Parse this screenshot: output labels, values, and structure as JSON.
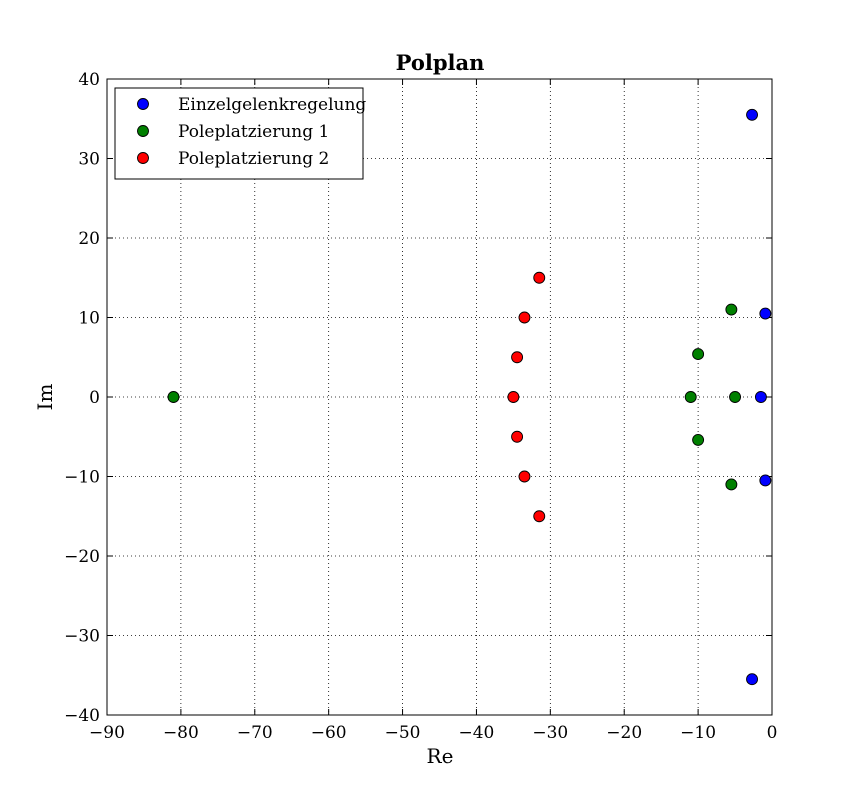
{
  "chart_data": {
    "type": "scatter",
    "title": "Polplan",
    "xlabel": "Re",
    "ylabel": "Im",
    "xlim": [
      -90,
      0
    ],
    "ylim": [
      -40,
      40
    ],
    "xticks": [
      -90,
      -80,
      -70,
      -60,
      -50,
      -40,
      -30,
      -20,
      -10,
      0
    ],
    "yticks": [
      -40,
      -30,
      -20,
      -10,
      0,
      10,
      20,
      30,
      40
    ],
    "xtick_labels": [
      "−90",
      "−80",
      "−70",
      "−60",
      "−50",
      "−40",
      "−30",
      "−20",
      "−10",
      "0"
    ],
    "ytick_labels": [
      "−40",
      "−30",
      "−20",
      "−10",
      "0",
      "10",
      "20",
      "30",
      "40"
    ],
    "grid": true,
    "legend_position": "top-left",
    "series": [
      {
        "name": "Einzelgelenkregelung",
        "color": "#0000ff",
        "points": [
          {
            "x": -2.7,
            "y": 35.5
          },
          {
            "x": -2.7,
            "y": -35.5
          },
          {
            "x": -0.9,
            "y": 10.5
          },
          {
            "x": -0.9,
            "y": -10.5
          },
          {
            "x": -1.5,
            "y": 0
          }
        ]
      },
      {
        "name": "Poleplatzierung 1",
        "color": "#008000",
        "points": [
          {
            "x": -81,
            "y": 0
          },
          {
            "x": -11,
            "y": 0
          },
          {
            "x": -10,
            "y": 5.4
          },
          {
            "x": -10,
            "y": -5.4
          },
          {
            "x": -5.5,
            "y": 11
          },
          {
            "x": -5.5,
            "y": -11
          },
          {
            "x": -5,
            "y": 0
          }
        ]
      },
      {
        "name": "Poleplatzierung 2",
        "color": "#ff0000",
        "points": [
          {
            "x": -35,
            "y": 0
          },
          {
            "x": -34.5,
            "y": 5
          },
          {
            "x": -34.5,
            "y": -5
          },
          {
            "x": -33.5,
            "y": 10
          },
          {
            "x": -33.5,
            "y": -10
          },
          {
            "x": -31.5,
            "y": 15
          },
          {
            "x": -31.5,
            "y": -15
          }
        ]
      }
    ]
  }
}
